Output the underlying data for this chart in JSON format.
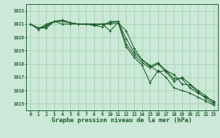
{
  "xlabel": "Graphe pression niveau de la mer (hPa)",
  "x": [
    0,
    1,
    2,
    3,
    4,
    5,
    6,
    7,
    8,
    9,
    10,
    11,
    12,
    13,
    14,
    15,
    16,
    17,
    18,
    19,
    20,
    21,
    22,
    23
  ],
  "line1": [
    1021.0,
    1020.7,
    1020.9,
    1021.2,
    1021.0,
    1021.0,
    1021.0,
    1021.0,
    1021.0,
    1021.0,
    1020.5,
    1021.1,
    1019.3,
    1018.5,
    1017.9,
    1016.6,
    1017.5,
    1017.0,
    1016.2,
    1016.0,
    1015.8,
    1015.5,
    1015.2,
    1014.9
  ],
  "line2": [
    1021.0,
    1020.7,
    1020.8,
    1021.2,
    1021.3,
    1021.1,
    1021.0,
    1021.0,
    1021.0,
    1021.0,
    1021.0,
    1021.1,
    1020.5,
    1019.2,
    1018.3,
    1017.9,
    1017.4,
    1017.5,
    1017.2,
    1016.5,
    1016.4,
    1015.9,
    1015.4,
    1015.0
  ],
  "line3": [
    1021.0,
    1020.6,
    1021.0,
    1021.2,
    1021.2,
    1021.1,
    1021.0,
    1021.0,
    1020.9,
    1021.0,
    1021.1,
    1021.2,
    1019.9,
    1018.9,
    1018.3,
    1017.8,
    1018.1,
    1017.5,
    1016.9,
    1016.9,
    1016.2,
    1015.8,
    1015.5,
    1015.2
  ],
  "line4": [
    1021.0,
    1020.7,
    1020.7,
    1021.2,
    1021.3,
    1021.1,
    1021.0,
    1021.0,
    1020.9,
    1020.8,
    1021.2,
    1021.2,
    1019.5,
    1018.7,
    1018.1,
    1017.7,
    1018.0,
    1017.4,
    1016.7,
    1017.0,
    1016.5,
    1016.0,
    1015.6,
    1015.1
  ],
  "bg_color": "#cce8d8",
  "grid_color": "#99ccaa",
  "line_color": "#1a5c28",
  "marker": "+",
  "ylim": [
    1014.5,
    1022.5
  ],
  "yticks": [
    1015,
    1016,
    1017,
    1018,
    1019,
    1020,
    1021,
    1022
  ],
  "xticks": [
    0,
    1,
    2,
    3,
    4,
    5,
    6,
    7,
    8,
    9,
    10,
    11,
    12,
    13,
    14,
    15,
    16,
    17,
    18,
    19,
    20,
    21,
    22,
    23
  ],
  "tick_fontsize": 4.8,
  "xlabel_fontsize": 6.5
}
